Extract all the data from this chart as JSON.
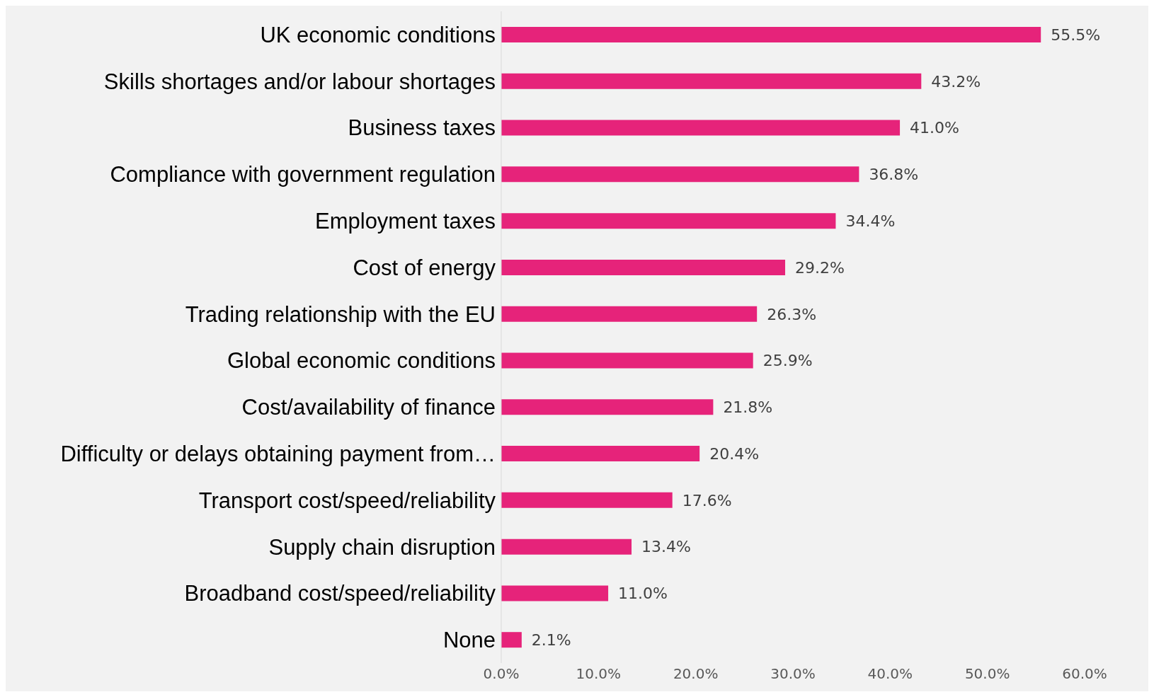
{
  "chart_data": {
    "type": "bar",
    "orientation": "horizontal",
    "categories": [
      "UK economic conditions",
      "Skills shortages and/or labour shortages",
      "Business taxes",
      "Compliance with government regulation",
      "Employment taxes",
      "Cost of energy",
      "Trading relationship with the EU",
      "Global economic conditions",
      "Cost/availability of finance",
      "Difficulty or delays obtaining payment from…",
      "Transport cost/speed/reliability",
      "Supply chain disruption",
      "Broadband cost/speed/reliability",
      "None"
    ],
    "values": [
      55.5,
      43.2,
      41.0,
      36.8,
      34.4,
      29.2,
      26.3,
      25.9,
      21.8,
      20.4,
      17.6,
      13.4,
      11.0,
      2.1
    ],
    "value_labels": [
      "55.5%",
      "43.2%",
      "41.0%",
      "36.8%",
      "34.4%",
      "29.2%",
      "26.3%",
      "25.9%",
      "21.8%",
      "20.4%",
      "17.6%",
      "13.4%",
      "11.0%",
      "2.1%"
    ],
    "color": "#e6237a",
    "xlim": [
      0,
      60
    ],
    "xticks": [
      {
        "value": 0,
        "label": "0.0%"
      },
      {
        "value": 10,
        "label": "10.0%"
      },
      {
        "value": 20,
        "label": "20.0%"
      },
      {
        "value": 30,
        "label": "30.0%"
      },
      {
        "value": 40,
        "label": "40.0%"
      },
      {
        "value": 50,
        "label": "50.0%"
      },
      {
        "value": 60,
        "label": "60.0%"
      }
    ],
    "grid": false
  }
}
